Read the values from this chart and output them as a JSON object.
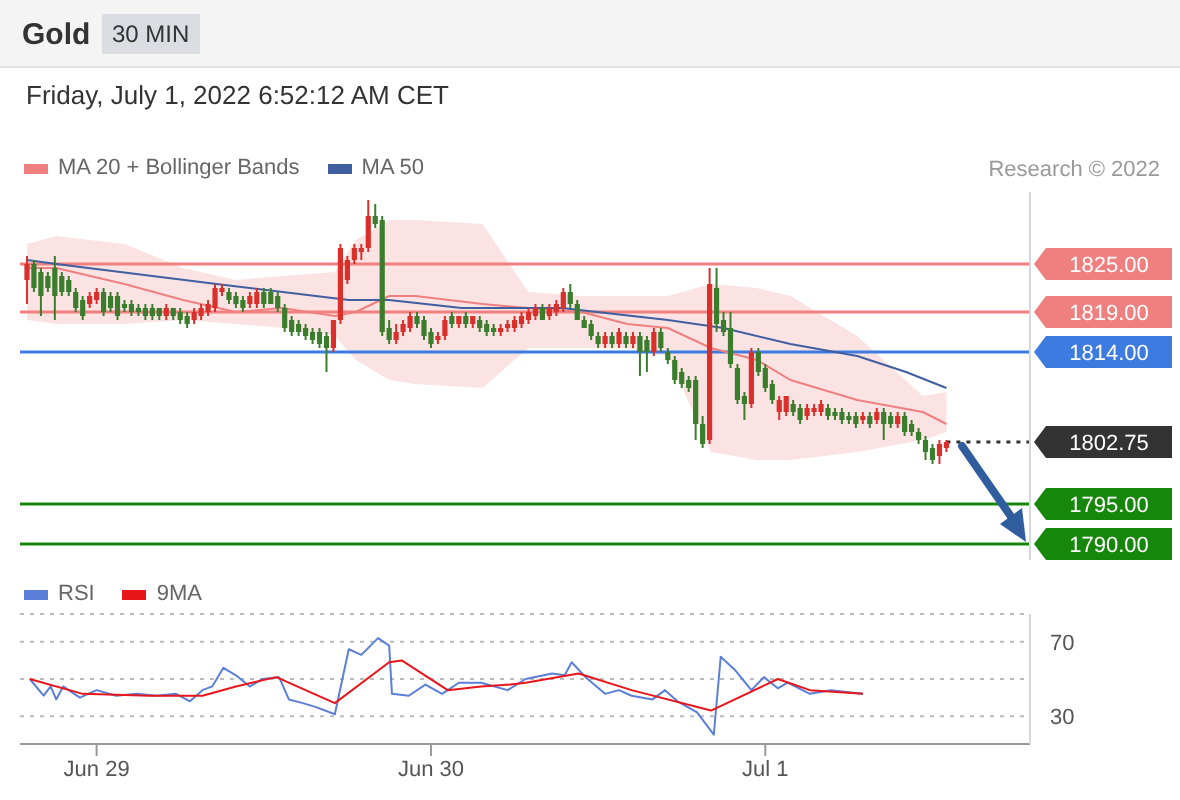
{
  "chart_data": [
    {
      "type": "candlestick",
      "title": "Gold",
      "subtitle": "30 MIN",
      "annotations": [
        "Friday, July 1, 2022 6:52:12 AM CET",
        "Research © 2022"
      ],
      "legend": "top left",
      "tick_labels": "y",
      "marker": "none",
      "xlim": [
        "2022-06-28T18:30",
        "2022-07-01T19:00"
      ],
      "ylim": [
        1788,
        1834
      ],
      "yticks": [
        {
          "value": 1825,
          "label": "1825.00"
        },
        {
          "value": 1819,
          "label": "1819.00"
        },
        {
          "value": 1814,
          "label": "1814.00"
        },
        1802.75,
        {
          "value": 1795,
          "label": "1795.00"
        },
        {
          "value": 1790,
          "label": "1790.00"
        }
      ],
      "x": [
        "2022-06-28T19:00",
        "2022-06-28T19:30",
        "2022-06-28T20:00",
        "2022-06-28T20:30",
        "2022-06-28T21:00",
        "2022-06-28T21:30",
        "2022-06-28T22:00",
        "2022-06-28T22:30",
        "2022-06-28T23:00",
        "2022-06-28T23:30",
        "2022-06-29T00:00",
        "2022-06-29T00:30",
        "2022-06-29T01:00",
        "2022-06-29T01:30",
        "2022-06-29T02:00",
        "2022-06-29T02:30",
        "2022-06-29T03:00",
        "2022-06-29T03:30",
        "2022-06-29T04:00",
        "2022-06-29T04:30",
        "2022-06-29T05:00",
        "2022-06-29T05:30",
        "2022-06-29T06:00",
        "2022-06-29T06:30",
        "2022-06-29T07:00",
        "2022-06-29T07:30",
        "2022-06-29T08:00",
        "2022-06-29T08:30",
        "2022-06-29T09:00",
        "2022-06-29T09:30",
        "2022-06-29T10:00",
        "2022-06-29T10:30",
        "2022-06-29T11:00",
        "2022-06-29T11:30",
        "2022-06-29T12:00",
        "2022-06-29T12:30",
        "2022-06-29T13:00",
        "2022-06-29T13:30",
        "2022-06-29T14:00",
        "2022-06-29T14:30",
        "2022-06-29T15:00",
        "2022-06-29T15:30",
        "2022-06-29T16:00",
        "2022-06-29T16:30",
        "2022-06-29T17:00",
        "2022-06-29T17:30",
        "2022-06-29T18:00",
        "2022-06-29T18:30",
        "2022-06-29T19:00",
        "2022-06-29T19:30",
        "2022-06-29T20:00",
        "2022-06-29T20:30",
        "2022-06-29T21:00",
        "2022-06-29T21:30",
        "2022-06-29T22:00",
        "2022-06-29T22:30",
        "2022-06-29T23:00",
        "2022-06-29T23:30",
        "2022-06-30T00:00",
        "2022-06-30T00:30",
        "2022-06-30T01:00",
        "2022-06-30T01:30",
        "2022-06-30T02:00",
        "2022-06-30T02:30",
        "2022-06-30T03:00",
        "2022-06-30T03:30",
        "2022-06-30T04:00",
        "2022-06-30T04:30",
        "2022-06-30T05:00",
        "2022-06-30T05:30",
        "2022-06-30T06:00",
        "2022-06-30T06:30",
        "2022-06-30T07:00",
        "2022-06-30T07:30",
        "2022-06-30T08:00",
        "2022-06-30T08:30",
        "2022-06-30T09:00",
        "2022-06-30T09:30",
        "2022-06-30T10:00",
        "2022-06-30T10:30",
        "2022-06-30T11:00",
        "2022-06-30T11:30",
        "2022-06-30T12:00",
        "2022-06-30T12:30",
        "2022-06-30T13:00",
        "2022-06-30T13:30",
        "2022-06-30T14:00",
        "2022-06-30T14:30",
        "2022-06-30T15:00",
        "2022-06-30T15:30",
        "2022-06-30T16:00",
        "2022-06-30T16:30",
        "2022-06-30T17:00",
        "2022-06-30T17:30",
        "2022-06-30T18:00",
        "2022-06-30T18:30",
        "2022-06-30T19:00",
        "2022-06-30T19:30",
        "2022-06-30T20:00",
        "2022-06-30T20:30",
        "2022-06-30T21:00",
        "2022-06-30T21:30",
        "2022-06-30T22:00",
        "2022-06-30T22:30",
        "2022-06-30T23:00",
        "2022-06-30T23:30",
        "2022-07-01T00:00",
        "2022-07-01T00:30",
        "2022-07-01T01:00",
        "2022-07-01T01:30",
        "2022-07-01T02:00",
        "2022-07-01T02:30",
        "2022-07-01T03:00",
        "2022-07-01T03:30",
        "2022-07-01T04:00",
        "2022-07-01T04:30",
        "2022-07-01T05:00",
        "2022-07-01T05:30",
        "2022-07-01T06:00",
        "2022-07-01T06:30",
        "2022-07-01T07:00",
        "2022-07-01T07:30",
        "2022-07-01T08:00",
        "2022-07-01T08:30",
        "2022-07-01T09:00",
        "2022-07-01T09:30",
        "2022-07-01T10:00",
        "2022-07-01T10:30",
        "2022-07-01T11:00",
        "2022-07-01T11:30",
        "2022-07-01T12:00",
        "2022-07-01T12:30",
        "2022-07-01T13:00"
      ],
      "ohlc": [
        [
          1823,
          1826,
          1820,
          1825
        ],
        [
          1825,
          1825.5,
          1821.5,
          1822
        ],
        [
          1824,
          1824.5,
          1818.5,
          1821
        ],
        [
          1823.5,
          1824,
          1821.5,
          1822
        ],
        [
          1824.5,
          1826,
          1818,
          1821
        ],
        [
          1823.5,
          1824,
          1821,
          1821.5
        ],
        [
          1823,
          1823.5,
          1821,
          1821.5
        ],
        [
          1821.5,
          1822,
          1819,
          1819.5
        ],
        [
          1820.5,
          1821,
          1818,
          1818.5
        ],
        [
          1820,
          1821.5,
          1819.5,
          1821
        ],
        [
          1820.5,
          1822,
          1820,
          1821.5
        ],
        [
          1821.5,
          1822,
          1818.5,
          1819
        ],
        [
          1821,
          1821.5,
          1819,
          1819.5
        ],
        [
          1821,
          1821.5,
          1818,
          1818.5
        ],
        [
          1820,
          1820.5,
          1819,
          1819.5
        ],
        [
          1820,
          1820.5,
          1818.5,
          1819
        ],
        [
          1819.5,
          1820,
          1818.5,
          1819
        ],
        [
          1819.5,
          1820,
          1818,
          1818.5
        ],
        [
          1819.5,
          1820,
          1818,
          1818.5
        ],
        [
          1819.5,
          1819.5,
          1818,
          1818.5
        ],
        [
          1818.5,
          1820,
          1818,
          1819.5
        ],
        [
          1819.5,
          1819.5,
          1818,
          1818.5
        ],
        [
          1819,
          1819.5,
          1817.5,
          1818
        ],
        [
          1818.5,
          1819,
          1817,
          1817.5
        ],
        [
          1818,
          1819.5,
          1817.5,
          1819
        ],
        [
          1818.5,
          1820,
          1818,
          1819.5
        ],
        [
          1819,
          1820.5,
          1818.5,
          1820
        ],
        [
          1819.5,
          1822.5,
          1819,
          1822
        ],
        [
          1821.5,
          1822.5,
          1821,
          1822
        ],
        [
          1821.5,
          1822,
          1820,
          1820.5
        ],
        [
          1821,
          1821.5,
          1819.5,
          1820
        ],
        [
          1820.5,
          1821,
          1819,
          1819.5
        ],
        [
          1820,
          1821.5,
          1819.5,
          1821
        ],
        [
          1820,
          1822,
          1819.5,
          1821.5
        ],
        [
          1821.5,
          1822,
          1819.5,
          1820
        ],
        [
          1821.5,
          1822,
          1820,
          1820
        ],
        [
          1821,
          1821.5,
          1819,
          1819.5
        ],
        [
          1819.5,
          1820,
          1816.5,
          1817
        ],
        [
          1818,
          1818.5,
          1816,
          1816.5
        ],
        [
          1817.5,
          1818,
          1816,
          1816.5
        ],
        [
          1817,
          1817.5,
          1815.5,
          1816
        ],
        [
          1816.5,
          1817,
          1815,
          1815.5
        ],
        [
          1816.5,
          1817,
          1814.5,
          1815
        ],
        [
          1816,
          1816.5,
          1811.5,
          1814.5
        ],
        [
          1814.5,
          1818,
          1814,
          1818
        ],
        [
          1818,
          1827.5,
          1817.5,
          1827
        ],
        [
          1823,
          1826,
          1822.5,
          1825.5
        ],
        [
          1825.5,
          1827.5,
          1825,
          1827
        ],
        [
          1826.5,
          1827.5,
          1825.5,
          1827
        ],
        [
          1827,
          1833,
          1826.5,
          1831
        ],
        [
          1831,
          1832.5,
          1829.5,
          1830
        ],
        [
          1830.5,
          1831,
          1816,
          1816.5
        ],
        [
          1817,
          1818,
          1815,
          1815.5
        ],
        [
          1815.5,
          1817.5,
          1815,
          1816.5
        ],
        [
          1816.5,
          1818,
          1816,
          1817.5
        ],
        [
          1817,
          1819,
          1816.5,
          1818.5
        ],
        [
          1818.5,
          1819,
          1817,
          1817.5
        ],
        [
          1818,
          1818.5,
          1815.5,
          1816
        ],
        [
          1816.5,
          1817,
          1814.5,
          1815
        ],
        [
          1815.5,
          1816.5,
          1815,
          1816
        ],
        [
          1816,
          1818.5,
          1815.5,
          1818
        ],
        [
          1818.5,
          1819,
          1817,
          1817.5
        ],
        [
          1817.5,
          1818.5,
          1817,
          1818.5
        ],
        [
          1818.5,
          1819,
          1817,
          1817.5
        ],
        [
          1817.5,
          1818.5,
          1817,
          1818.5
        ],
        [
          1818,
          1818.5,
          1816.5,
          1817
        ],
        [
          1817.5,
          1818,
          1816,
          1816.5
        ],
        [
          1817,
          1817.5,
          1816,
          1816.5
        ],
        [
          1816.5,
          1817.5,
          1816,
          1817
        ],
        [
          1817,
          1818,
          1816.5,
          1817.5
        ],
        [
          1817,
          1818.5,
          1816.5,
          1818
        ],
        [
          1817.5,
          1819,
          1817,
          1818.5
        ],
        [
          1818,
          1819.5,
          1817.5,
          1819
        ],
        [
          1818.5,
          1820,
          1818,
          1819.5
        ],
        [
          1819.5,
          1820,
          1818,
          1818
        ],
        [
          1818.5,
          1820,
          1818,
          1819.5
        ],
        [
          1819,
          1820.5,
          1818.5,
          1820
        ],
        [
          1819.5,
          1822,
          1819,
          1821.5
        ],
        [
          1821.5,
          1822.5,
          1819.5,
          1820
        ],
        [
          1820,
          1820.5,
          1818,
          1818
        ],
        [
          1818,
          1818.5,
          1817,
          1817
        ],
        [
          1817.5,
          1818,
          1815.5,
          1816
        ],
        [
          1816,
          1816.5,
          1814.5,
          1815
        ],
        [
          1815,
          1816.5,
          1814.5,
          1816
        ],
        [
          1816,
          1816.5,
          1814.5,
          1815
        ],
        [
          1815,
          1817,
          1814.5,
          1816.5
        ],
        [
          1816,
          1816.5,
          1814.5,
          1815
        ],
        [
          1815,
          1816.5,
          1814.5,
          1816
        ],
        [
          1816,
          1816.5,
          1811,
          1814
        ],
        [
          1815.5,
          1816,
          1811.5,
          1814
        ],
        [
          1814,
          1817,
          1813.5,
          1816.5
        ],
        [
          1816.5,
          1817,
          1814,
          1814.5
        ],
        [
          1814,
          1814.5,
          1812.5,
          1813
        ],
        [
          1813,
          1813.5,
          1810,
          1810.5
        ],
        [
          1811.5,
          1812,
          1809.5,
          1810
        ],
        [
          1810.5,
          1811,
          1809,
          1809.5
        ],
        [
          1810.5,
          1811,
          1803,
          1805
        ],
        [
          1805,
          1806,
          1802,
          1802.5
        ],
        [
          1803,
          1824.5,
          1802.5,
          1822.5
        ],
        [
          1822,
          1824.5,
          1816.5,
          1817.5
        ],
        [
          1818,
          1819,
          1816,
          1816.5
        ],
        [
          1817,
          1819,
          1812,
          1812.5
        ],
        [
          1812,
          1812.5,
          1807.5,
          1808
        ],
        [
          1808.5,
          1809,
          1805.5,
          1807.5
        ],
        [
          1807.5,
          1814.5,
          1807,
          1814
        ],
        [
          1814,
          1814.5,
          1811,
          1811.5
        ],
        [
          1812,
          1812.5,
          1809,
          1809.5
        ],
        [
          1810,
          1810.5,
          1807.5,
          1808
        ],
        [
          1806.5,
          1808.5,
          1805.5,
          1808
        ],
        [
          1806.5,
          1808.5,
          1806,
          1808.5
        ],
        [
          1807.5,
          1808,
          1806,
          1806.5
        ],
        [
          1807,
          1807.5,
          1805,
          1805.5
        ],
        [
          1806,
          1807.5,
          1805.5,
          1807
        ],
        [
          1806.5,
          1807.5,
          1806,
          1807
        ],
        [
          1806.5,
          1808,
          1806,
          1807.5
        ],
        [
          1807,
          1807.5,
          1805.5,
          1806
        ],
        [
          1806.5,
          1807,
          1805.5,
          1806
        ],
        [
          1806.5,
          1807,
          1805,
          1805.5
        ],
        [
          1806,
          1806.5,
          1805,
          1805.5
        ],
        [
          1806,
          1806.5,
          1804.5,
          1805
        ],
        [
          1805.5,
          1806.5,
          1805,
          1806
        ],
        [
          1806,
          1806.5,
          1804.5,
          1805
        ],
        [
          1805.5,
          1807,
          1805,
          1806.5
        ],
        [
          1806.5,
          1807,
          1803,
          1805
        ],
        [
          1806,
          1806.5,
          1804.5,
          1805
        ],
        [
          1805,
          1806.5,
          1804.5,
          1806
        ],
        [
          1806,
          1806.5,
          1803.5,
          1804
        ],
        [
          1805,
          1805.5,
          1803.5,
          1804
        ],
        [
          1804,
          1804.5,
          1802.5,
          1803
        ],
        [
          1803,
          1803.5,
          1800.5,
          1801.5
        ],
        [
          1802,
          1802.5,
          1800,
          1800.5
        ],
        [
          1801,
          1803,
          1800,
          1802.5
        ],
        [
          1802,
          1803,
          1801.5,
          1802.75
        ]
      ],
      "colors": [
        "#d9302c",
        "#3a7d2c",
        "#3a7d2c",
        "#3a7d2c",
        "#3a7d2c",
        "#3a7d2c",
        "#3a7d2c",
        "#3a7d2c",
        "#3a7d2c",
        "#d9302c",
        "#d9302c",
        "#3a7d2c",
        "#3a7d2c",
        "#3a7d2c",
        "#3a7d2c",
        "#3a7d2c",
        "#3a7d2c",
        "#3a7d2c",
        "#3a7d2c",
        "#3a7d2c",
        "#d9302c",
        "#3a7d2c",
        "#3a7d2c",
        "#3a7d2c",
        "#d9302c",
        "#d9302c",
        "#d9302c",
        "#d9302c",
        "#d9302c",
        "#3a7d2c",
        "#3a7d2c",
        "#3a7d2c",
        "#d9302c",
        "#d9302c",
        "#3a7d2c",
        "#3a7d2c",
        "#3a7d2c",
        "#3a7d2c",
        "#3a7d2c",
        "#3a7d2c",
        "#3a7d2c",
        "#3a7d2c",
        "#3a7d2c",
        "#3a7d2c",
        "#d9302c",
        "#d9302c",
        "#d9302c",
        "#d9302c",
        "#d9302c",
        "#d9302c",
        "#3a7d2c",
        "#3a7d2c",
        "#3a7d2c",
        "#d9302c",
        "#d9302c",
        "#d9302c",
        "#3a7d2c",
        "#3a7d2c",
        "#3a7d2c",
        "#d9302c",
        "#d9302c",
        "#3a7d2c",
        "#d9302c",
        "#3a7d2c",
        "#d9302c",
        "#3a7d2c",
        "#3a7d2c",
        "#3a7d2c",
        "#d9302c",
        "#d9302c",
        "#d9302c",
        "#d9302c",
        "#d9302c",
        "#d9302c",
        "#3a7d2c",
        "#d9302c",
        "#d9302c",
        "#d9302c",
        "#3a7d2c",
        "#3a7d2c",
        "#3a7d2c",
        "#3a7d2c",
        "#3a7d2c",
        "#d9302c",
        "#3a7d2c",
        "#d9302c",
        "#3a7d2c",
        "#d9302c",
        "#3a7d2c",
        "#3a7d2c",
        "#d9302c",
        "#3a7d2c",
        "#3a7d2c",
        "#3a7d2c",
        "#3a7d2c",
        "#3a7d2c",
        "#3a7d2c",
        "#3a7d2c",
        "#d9302c",
        "#3a7d2c",
        "#3a7d2c",
        "#3a7d2c",
        "#3a7d2c",
        "#3a7d2c",
        "#d9302c",
        "#3a7d2c",
        "#3a7d2c",
        "#3a7d2c",
        "#d9302c",
        "#d9302c",
        "#3a7d2c",
        "#3a7d2c",
        "#d9302c",
        "#d9302c",
        "#d9302c",
        "#3a7d2c",
        "#3a7d2c",
        "#3a7d2c",
        "#3a7d2c",
        "#3a7d2c",
        "#d9302c",
        "#3a7d2c",
        "#d9302c",
        "#3a7d2c",
        "#3a7d2c",
        "#d9302c",
        "#3a7d2c",
        "#3a7d2c",
        "#3a7d2c",
        "#3a7d2c",
        "#3a7d2c",
        "#d9302c",
        "#d9302c"
      ],
      "series": [
        {
          "name": "MA 20 + Bollinger Bands",
          "type": "line",
          "color": "#f08080",
          "x": [
            "2022-06-28T19:00",
            "2022-06-28T21:06",
            "2022-06-29T02:00",
            "2022-06-29T06:12",
            "2022-06-29T10:00",
            "2022-06-29T13:18",
            "2022-06-29T17:06",
            "2022-06-29T18:36",
            "2022-06-29T21:00",
            "2022-06-29T22:54",
            "2022-06-30T03:42",
            "2022-06-30T07:00",
            "2022-06-30T10:48",
            "2022-06-30T14:06",
            "2022-06-30T17:00",
            "2022-06-30T20:06",
            "2022-06-30T23:24",
            "2022-07-01T01:48",
            "2022-07-01T06:36",
            "2022-07-01T11:18",
            "2022-07-01T13:00"
          ],
          "values": [
            1824.5,
            1824.5,
            1822.5,
            1820.5,
            1819,
            1819.5,
            1818.5,
            1819,
            1821,
            1821,
            1820,
            1819.5,
            1819,
            1817.5,
            1817,
            1814.5,
            1813,
            1810.5,
            1808,
            1806.5,
            1805
          ],
          "lower": [
            1818,
            1817.5,
            1817.5,
            1818,
            1817.5,
            1817,
            1816,
            1813,
            1810.5,
            1810,
            1809.5,
            1814.5,
            1814.5,
            1814.5,
            1813.5,
            1801.5,
            1800.5,
            1800.5,
            1801.5,
            1803,
            1804
          ],
          "upper": [
            1827.5,
            1828.5,
            1827.5,
            1824.5,
            1823,
            1823.5,
            1824,
            1828,
            1830.5,
            1830.5,
            1830,
            1821.5,
            1821,
            1821,
            1821,
            1822.5,
            1822,
            1821,
            1816,
            1808.5,
            1809
          ]
        },
        {
          "name": "MA 50",
          "type": "line",
          "color": "#3f5fa0",
          "x": [
            "2022-06-28T19:00",
            "2022-06-28T21:06",
            "2022-06-29T08:36",
            "2022-06-29T18:06",
            "2022-06-29T21:00",
            "2022-06-30T02:12",
            "2022-06-30T09:24",
            "2022-06-30T17:00",
            "2022-06-30T21:00",
            "2022-07-01T01:48",
            "2022-07-01T06:36",
            "2022-07-01T10:06",
            "2022-07-01T13:00"
          ],
          "values": [
            1825.5,
            1825,
            1822.5,
            1820.5,
            1820.5,
            1819.5,
            1819.5,
            1818,
            1817,
            1815,
            1813.5,
            1811.5,
            1809.5
          ]
        }
      ],
      "ref_lines": [
        {
          "axis": "y",
          "value": 1825,
          "color": "#f08080",
          "line_style": "solid"
        },
        {
          "axis": "y",
          "value": 1819,
          "color": "#f08080",
          "line_style": "solid"
        },
        {
          "axis": "y",
          "value": 1814,
          "color": "#3d7be0",
          "line_style": "solid"
        },
        {
          "axis": "y",
          "value": 1802.75,
          "color": "#333333",
          "line_style": "dotted"
        },
        {
          "axis": "y",
          "value": 1795,
          "color": "#17870c",
          "line_style": "solid"
        },
        {
          "axis": "y",
          "value": 1790,
          "color": "#17870c",
          "line_style": "solid"
        }
      ]
    },
    {
      "type": "line",
      "legend": "top left",
      "grid": "y",
      "marker": "none",
      "xlim": [
        "2022-06-28T18:30",
        "2022-07-01T19:00"
      ],
      "ylim": [
        15,
        85
      ],
      "yticks": [
        70,
        {
          "value": 50,
          "label": null
        },
        30
      ],
      "xticks": [
        {
          "value": "2022-06-29",
          "label": "Jun 29"
        },
        {
          "value": "2022-06-30",
          "label": "Jun 30"
        },
        {
          "value": "2022-07-01",
          "label": "Jul 1"
        }
      ],
      "series": [
        {
          "name": "RSI",
          "color": "#5b7fd9",
          "x": [
            "2022-06-28T19:12",
            "2022-06-28T20:12",
            "2022-06-28T20:42",
            "2022-06-28T21:06",
            "2022-06-28T21:36",
            "2022-06-28T22:48",
            "2022-06-29T00:00",
            "2022-06-29T01:24",
            "2022-06-29T02:54",
            "2022-06-29T04:18",
            "2022-06-29T05:42",
            "2022-06-29T06:42",
            "2022-06-29T07:36",
            "2022-06-29T08:18",
            "2022-06-29T09:06",
            "2022-06-29T10:00",
            "2022-06-29T11:00",
            "2022-06-29T11:54",
            "2022-06-29T13:06",
            "2022-06-29T13:48",
            "2022-06-29T14:48",
            "2022-06-29T15:42",
            "2022-06-29T17:06",
            "2022-06-29T18:06",
            "2022-06-29T19:00",
            "2022-06-29T20:12",
            "2022-06-29T21:00",
            "2022-06-29T21:12",
            "2022-06-29T22:24",
            "2022-06-29T23:36",
            "2022-06-30T00:48",
            "2022-06-30T02:00",
            "2022-06-30T03:36",
            "2022-06-30T05:30",
            "2022-06-30T06:48",
            "2022-06-30T08:42",
            "2022-06-30T09:36",
            "2022-06-30T10:06",
            "2022-06-30T11:06",
            "2022-06-30T12:30",
            "2022-06-30T13:30",
            "2022-06-30T14:24",
            "2022-06-30T15:54",
            "2022-06-30T16:48",
            "2022-06-30T17:42",
            "2022-06-30T19:06",
            "2022-06-30T20:18",
            "2022-06-30T20:48",
            "2022-06-30T21:48",
            "2022-06-30T23:00",
            "2022-06-30T23:54",
            "2022-07-01T00:54",
            "2022-07-01T01:36",
            "2022-07-01T03:12",
            "2022-07-01T04:42",
            "2022-07-01T07:00"
          ],
          "values": [
            50,
            41,
            46,
            39,
            46,
            40,
            44,
            41,
            42,
            41,
            42,
            38,
            44,
            46,
            56,
            52,
            46,
            50,
            51,
            39,
            37,
            35,
            31,
            66,
            63,
            72,
            68,
            42,
            41,
            47,
            42,
            48,
            48,
            44,
            50,
            53,
            52,
            59,
            51,
            42,
            44,
            41,
            39,
            44,
            38,
            32,
            20,
            62,
            55,
            44,
            51,
            45,
            48,
            42,
            44,
            42
          ]
        },
        {
          "name": "9MA",
          "color": "#e8161b",
          "x": [
            "2022-06-28T19:12",
            "2022-06-28T23:00",
            "2022-06-29T03:48",
            "2022-06-29T07:36",
            "2022-06-29T10:00",
            "2022-06-29T12:54",
            "2022-06-29T17:06",
            "2022-06-29T21:00",
            "2022-06-29T21:54",
            "2022-06-30T01:12",
            "2022-06-30T03:36",
            "2022-06-30T05:42",
            "2022-06-30T06:48",
            "2022-06-30T10:36",
            "2022-06-30T14:24",
            "2022-06-30T20:06",
            "2022-07-01T00:54",
            "2022-07-01T03:12",
            "2022-07-01T07:00"
          ],
          "values": [
            50,
            42,
            41,
            41,
            46,
            51,
            37,
            59,
            60,
            44,
            46,
            47,
            48,
            53,
            44,
            33,
            50,
            44,
            42
          ]
        }
      ]
    }
  ]
}
